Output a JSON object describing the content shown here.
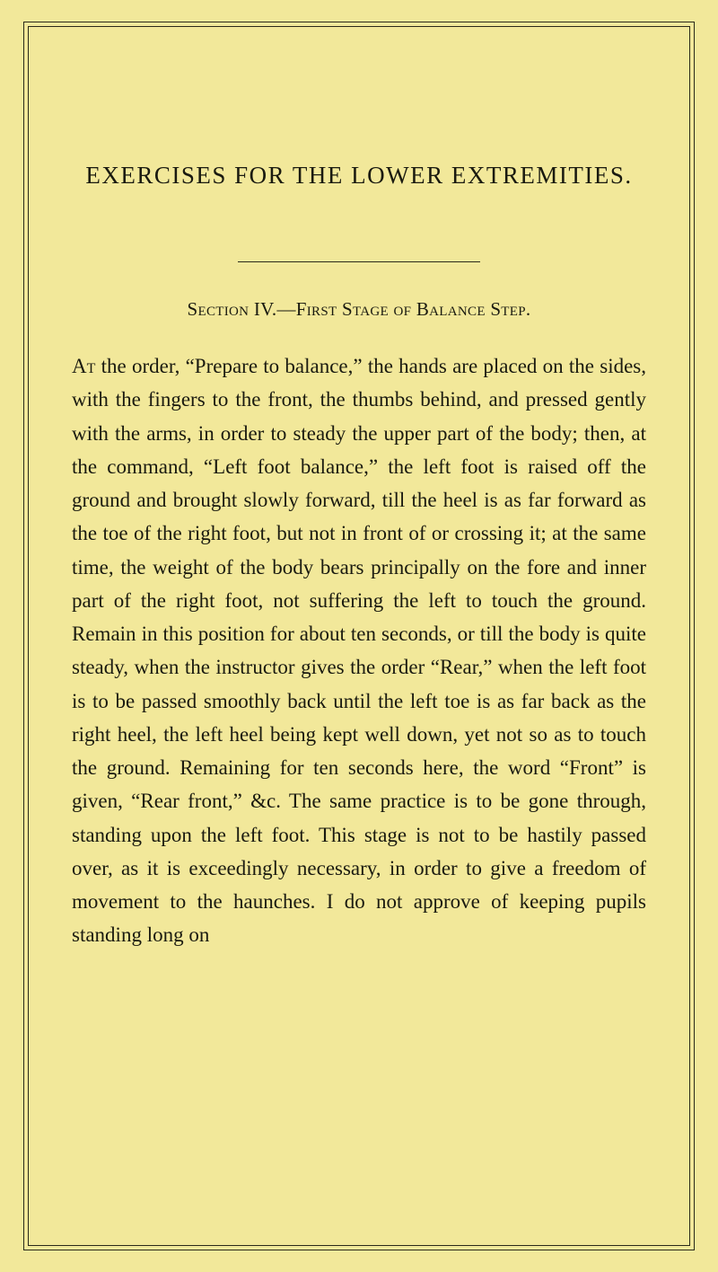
{
  "page": {
    "title": "EXERCISES FOR THE LOWER EXTREMITIES.",
    "section_heading": "Section IV.—First Stage of Balance Step.",
    "body_first_word": "At",
    "body_rest": " the order, “Prepare to balance,” the hands are placed on the sides, with the fingers to the front, the thumbs behind, and pressed gently with the arms, in order to steady the upper part of the body; then, at the command, “Left foot balance,” the left foot is raised off the ground and brought slowly forward, till the heel is as far forward as the toe of the right foot, but not in front of or crossing it; at the same time, the weight of the body bears principally on the fore and inner part of the right foot, not suffering the left to touch the ground. Remain in this position for about ten seconds, or till the body is quite steady, when the instructor gives the order “Rear,” when the left foot is to be passed smoothly back until the left toe is as far back as the right heel, the left heel being kept well down, yet not so as to touch the ground. Remaining for ten seconds here, the word “Front” is given, “Rear front,” &c. The same practice is to be gone through, standing upon the left foot. This stage is not to be hastily passed over, as it is exceedingly necessary, in order to give a freedom of movement to the haunches. I do not approve of keeping pupils standing long on"
  },
  "style": {
    "background_color": "#f2e89a",
    "text_color": "#1a1a10",
    "border_color": "#2a2a1a",
    "title_fontsize": 27,
    "section_fontsize": 21,
    "body_fontsize": 23,
    "body_line_height": 1.62
  }
}
